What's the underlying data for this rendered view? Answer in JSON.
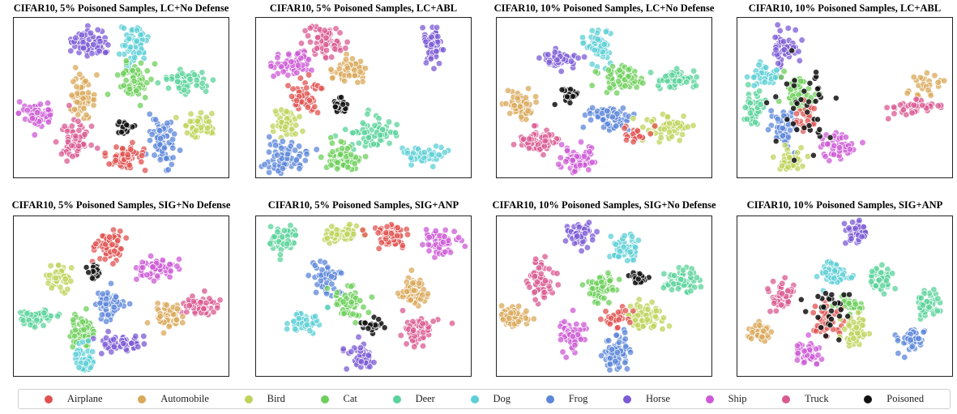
{
  "chart_data": {
    "type": "scatter",
    "classes": [
      {
        "name": "Airplane",
        "color": "#e0524f"
      },
      {
        "name": "Automobile",
        "color": "#d9a85a"
      },
      {
        "name": "Bird",
        "color": "#bdd35a"
      },
      {
        "name": "Cat",
        "color": "#6ccf5a"
      },
      {
        "name": "Deer",
        "color": "#59d39a"
      },
      {
        "name": "Dog",
        "color": "#5ccfd6"
      },
      {
        "name": "Frog",
        "color": "#5b86d9"
      },
      {
        "name": "Horse",
        "color": "#7b5ad6"
      },
      {
        "name": "Ship",
        "color": "#cc5ad6"
      },
      {
        "name": "Truck",
        "color": "#d95a91"
      },
      {
        "name": "Poisoned",
        "color": "#111111"
      }
    ],
    "panels": [
      {
        "title": "CIFAR10, 5% Poisoned Samples, LC+No Defense",
        "clusters": [
          {
            "c": "Horse",
            "x": 0.36,
            "y": 0.16,
            "n": 70,
            "rx": 0.09,
            "ry": 0.08
          },
          {
            "c": "Dog",
            "x": 0.56,
            "y": 0.16,
            "n": 60,
            "rx": 0.06,
            "ry": 0.13
          },
          {
            "c": "Cat",
            "x": 0.56,
            "y": 0.41,
            "n": 70,
            "rx": 0.07,
            "ry": 0.12
          },
          {
            "c": "Deer",
            "x": 0.8,
            "y": 0.4,
            "n": 60,
            "rx": 0.09,
            "ry": 0.07
          },
          {
            "c": "Automobile",
            "x": 0.32,
            "y": 0.5,
            "n": 60,
            "rx": 0.06,
            "ry": 0.11
          },
          {
            "c": "Ship",
            "x": 0.12,
            "y": 0.6,
            "n": 60,
            "rx": 0.09,
            "ry": 0.08
          },
          {
            "c": "Bird",
            "x": 0.86,
            "y": 0.66,
            "n": 55,
            "rx": 0.08,
            "ry": 0.08
          },
          {
            "c": "Frog",
            "x": 0.7,
            "y": 0.78,
            "n": 70,
            "rx": 0.06,
            "ry": 0.14
          },
          {
            "c": "Truck",
            "x": 0.28,
            "y": 0.77,
            "n": 65,
            "rx": 0.07,
            "ry": 0.11
          },
          {
            "c": "Airplane",
            "x": 0.52,
            "y": 0.86,
            "n": 60,
            "rx": 0.09,
            "ry": 0.09
          },
          {
            "c": "Poisoned",
            "x": 0.52,
            "y": 0.69,
            "n": 25,
            "rx": 0.04,
            "ry": 0.05
          }
        ]
      },
      {
        "title": "CIFAR10, 5% Poisoned Samples, LC+ABL",
        "clusters": [
          {
            "c": "Truck",
            "x": 0.33,
            "y": 0.15,
            "n": 65,
            "rx": 0.08,
            "ry": 0.11
          },
          {
            "c": "Horse",
            "x": 0.81,
            "y": 0.18,
            "n": 50,
            "rx": 0.05,
            "ry": 0.12
          },
          {
            "c": "Ship",
            "x": 0.16,
            "y": 0.29,
            "n": 55,
            "rx": 0.09,
            "ry": 0.08
          },
          {
            "c": "Automobile",
            "x": 0.44,
            "y": 0.32,
            "n": 55,
            "rx": 0.08,
            "ry": 0.08
          },
          {
            "c": "Airplane",
            "x": 0.23,
            "y": 0.49,
            "n": 55,
            "rx": 0.07,
            "ry": 0.1
          },
          {
            "c": "Bird",
            "x": 0.14,
            "y": 0.66,
            "n": 45,
            "rx": 0.06,
            "ry": 0.08
          },
          {
            "c": "Deer",
            "x": 0.55,
            "y": 0.72,
            "n": 70,
            "rx": 0.12,
            "ry": 0.09
          },
          {
            "c": "Frog",
            "x": 0.14,
            "y": 0.87,
            "n": 70,
            "rx": 0.11,
            "ry": 0.09
          },
          {
            "c": "Cat",
            "x": 0.4,
            "y": 0.88,
            "n": 60,
            "rx": 0.08,
            "ry": 0.09
          },
          {
            "c": "Dog",
            "x": 0.77,
            "y": 0.85,
            "n": 45,
            "rx": 0.09,
            "ry": 0.06
          },
          {
            "c": "Poisoned",
            "x": 0.39,
            "y": 0.56,
            "n": 25,
            "rx": 0.04,
            "ry": 0.05
          }
        ]
      },
      {
        "title": "CIFAR10, 10% Poisoned Samples, LC+No Defense",
        "clusters": [
          {
            "c": "Dog",
            "x": 0.48,
            "y": 0.16,
            "n": 55,
            "rx": 0.06,
            "ry": 0.11
          },
          {
            "c": "Horse",
            "x": 0.29,
            "y": 0.26,
            "n": 55,
            "rx": 0.08,
            "ry": 0.06
          },
          {
            "c": "Cat",
            "x": 0.58,
            "y": 0.38,
            "n": 60,
            "rx": 0.09,
            "ry": 0.07
          },
          {
            "c": "Deer",
            "x": 0.83,
            "y": 0.39,
            "n": 60,
            "rx": 0.09,
            "ry": 0.06
          },
          {
            "c": "Automobile",
            "x": 0.1,
            "y": 0.54,
            "n": 55,
            "rx": 0.06,
            "ry": 0.09
          },
          {
            "c": "Frog",
            "x": 0.52,
            "y": 0.62,
            "n": 65,
            "rx": 0.09,
            "ry": 0.08
          },
          {
            "c": "Bird",
            "x": 0.8,
            "y": 0.69,
            "n": 55,
            "rx": 0.1,
            "ry": 0.08
          },
          {
            "c": "Truck",
            "x": 0.2,
            "y": 0.77,
            "n": 60,
            "rx": 0.09,
            "ry": 0.08
          },
          {
            "c": "Ship",
            "x": 0.38,
            "y": 0.89,
            "n": 60,
            "rx": 0.09,
            "ry": 0.09
          },
          {
            "c": "Airplane",
            "x": 0.65,
            "y": 0.73,
            "n": 25,
            "rx": 0.06,
            "ry": 0.05
          },
          {
            "c": "Poisoned",
            "x": 0.34,
            "y": 0.49,
            "n": 25,
            "rx": 0.04,
            "ry": 0.05
          }
        ]
      },
      {
        "title": "CIFAR10, 10% Poisoned Samples, LC+ABL",
        "clusters": [
          {
            "c": "Horse",
            "x": 0.22,
            "y": 0.2,
            "n": 50,
            "rx": 0.06,
            "ry": 0.14
          },
          {
            "c": "Dog",
            "x": 0.13,
            "y": 0.36,
            "n": 40,
            "rx": 0.07,
            "ry": 0.06
          },
          {
            "c": "Cat",
            "x": 0.28,
            "y": 0.48,
            "n": 55,
            "rx": 0.08,
            "ry": 0.12
          },
          {
            "c": "Deer",
            "x": 0.08,
            "y": 0.57,
            "n": 40,
            "rx": 0.05,
            "ry": 0.1
          },
          {
            "c": "Frog",
            "x": 0.22,
            "y": 0.68,
            "n": 55,
            "rx": 0.06,
            "ry": 0.12
          },
          {
            "c": "Automobile",
            "x": 0.86,
            "y": 0.42,
            "n": 25,
            "rx": 0.08,
            "ry": 0.08
          },
          {
            "c": "Truck",
            "x": 0.82,
            "y": 0.56,
            "n": 40,
            "rx": 0.12,
            "ry": 0.04
          },
          {
            "c": "Ship",
            "x": 0.47,
            "y": 0.8,
            "n": 50,
            "rx": 0.08,
            "ry": 0.1
          },
          {
            "c": "Bird",
            "x": 0.23,
            "y": 0.9,
            "n": 40,
            "rx": 0.06,
            "ry": 0.07
          },
          {
            "c": "Airplane",
            "x": 0.32,
            "y": 0.63,
            "n": 25,
            "rx": 0.06,
            "ry": 0.1
          },
          {
            "c": "Poisoned",
            "x": 0.32,
            "y": 0.55,
            "n": 40,
            "rx": 0.16,
            "ry": 0.32
          }
        ]
      },
      {
        "title": "CIFAR10, 5% Poisoned Samples, SIG+No Defense",
        "clusters": [
          {
            "c": "Airplane",
            "x": 0.44,
            "y": 0.18,
            "n": 60,
            "rx": 0.07,
            "ry": 0.1
          },
          {
            "c": "Ship",
            "x": 0.66,
            "y": 0.33,
            "n": 55,
            "rx": 0.09,
            "ry": 0.07
          },
          {
            "c": "Bird",
            "x": 0.22,
            "y": 0.39,
            "n": 45,
            "rx": 0.06,
            "ry": 0.08
          },
          {
            "c": "Frog",
            "x": 0.45,
            "y": 0.56,
            "n": 55,
            "rx": 0.07,
            "ry": 0.09
          },
          {
            "c": "Truck",
            "x": 0.86,
            "y": 0.56,
            "n": 55,
            "rx": 0.08,
            "ry": 0.06
          },
          {
            "c": "Automobile",
            "x": 0.71,
            "y": 0.63,
            "n": 50,
            "rx": 0.06,
            "ry": 0.08
          },
          {
            "c": "Deer",
            "x": 0.11,
            "y": 0.63,
            "n": 55,
            "rx": 0.08,
            "ry": 0.06
          },
          {
            "c": "Cat",
            "x": 0.32,
            "y": 0.72,
            "n": 55,
            "rx": 0.06,
            "ry": 0.09
          },
          {
            "c": "Horse",
            "x": 0.5,
            "y": 0.79,
            "n": 55,
            "rx": 0.09,
            "ry": 0.06
          },
          {
            "c": "Dog",
            "x": 0.34,
            "y": 0.9,
            "n": 45,
            "rx": 0.05,
            "ry": 0.09
          },
          {
            "c": "Poisoned",
            "x": 0.38,
            "y": 0.34,
            "n": 20,
            "rx": 0.04,
            "ry": 0.04
          }
        ]
      },
      {
        "title": "CIFAR10, 5% Poisoned Samples, SIG+ANP",
        "clusters": [
          {
            "c": "Deer",
            "x": 0.13,
            "y": 0.14,
            "n": 55,
            "rx": 0.07,
            "ry": 0.08
          },
          {
            "c": "Bird",
            "x": 0.4,
            "y": 0.11,
            "n": 55,
            "rx": 0.09,
            "ry": 0.06
          },
          {
            "c": "Airplane",
            "x": 0.62,
            "y": 0.13,
            "n": 55,
            "rx": 0.09,
            "ry": 0.07
          },
          {
            "c": "Ship",
            "x": 0.85,
            "y": 0.17,
            "n": 55,
            "rx": 0.08,
            "ry": 0.07
          },
          {
            "c": "Frog",
            "x": 0.33,
            "y": 0.38,
            "n": 55,
            "rx": 0.06,
            "ry": 0.1
          },
          {
            "c": "Cat",
            "x": 0.43,
            "y": 0.54,
            "n": 60,
            "rx": 0.08,
            "ry": 0.09
          },
          {
            "c": "Automobile",
            "x": 0.73,
            "y": 0.46,
            "n": 55,
            "rx": 0.06,
            "ry": 0.1
          },
          {
            "c": "Dog",
            "x": 0.22,
            "y": 0.66,
            "n": 50,
            "rx": 0.09,
            "ry": 0.06
          },
          {
            "c": "Truck",
            "x": 0.76,
            "y": 0.71,
            "n": 55,
            "rx": 0.07,
            "ry": 0.09
          },
          {
            "c": "Horse",
            "x": 0.49,
            "y": 0.88,
            "n": 55,
            "rx": 0.06,
            "ry": 0.09
          },
          {
            "c": "Poisoned",
            "x": 0.54,
            "y": 0.68,
            "n": 25,
            "rx": 0.06,
            "ry": 0.04
          }
        ]
      },
      {
        "title": "CIFAR10, 10% Poisoned Samples, SIG+No Defense",
        "clusters": [
          {
            "c": "Horse",
            "x": 0.39,
            "y": 0.11,
            "n": 55,
            "rx": 0.06,
            "ry": 0.08
          },
          {
            "c": "Dog",
            "x": 0.59,
            "y": 0.2,
            "n": 50,
            "rx": 0.06,
            "ry": 0.08
          },
          {
            "c": "Truck",
            "x": 0.21,
            "y": 0.4,
            "n": 60,
            "rx": 0.06,
            "ry": 0.12
          },
          {
            "c": "Deer",
            "x": 0.86,
            "y": 0.4,
            "n": 55,
            "rx": 0.08,
            "ry": 0.07
          },
          {
            "c": "Cat",
            "x": 0.49,
            "y": 0.46,
            "n": 55,
            "rx": 0.07,
            "ry": 0.09
          },
          {
            "c": "Automobile",
            "x": 0.08,
            "y": 0.63,
            "n": 55,
            "rx": 0.08,
            "ry": 0.06
          },
          {
            "c": "Bird",
            "x": 0.69,
            "y": 0.63,
            "n": 55,
            "rx": 0.09,
            "ry": 0.08
          },
          {
            "c": "Airplane",
            "x": 0.56,
            "y": 0.64,
            "n": 30,
            "rx": 0.07,
            "ry": 0.06
          },
          {
            "c": "Ship",
            "x": 0.35,
            "y": 0.75,
            "n": 55,
            "rx": 0.06,
            "ry": 0.11
          },
          {
            "c": "Frog",
            "x": 0.56,
            "y": 0.85,
            "n": 65,
            "rx": 0.06,
            "ry": 0.13
          },
          {
            "c": "Poisoned",
            "x": 0.66,
            "y": 0.39,
            "n": 20,
            "rx": 0.04,
            "ry": 0.04
          }
        ]
      },
      {
        "title": "CIFAR10, 10% Poisoned Samples, SIG+ANP",
        "clusters": [
          {
            "c": "Horse",
            "x": 0.55,
            "y": 0.1,
            "n": 45,
            "rx": 0.05,
            "ry": 0.09
          },
          {
            "c": "Dog",
            "x": 0.45,
            "y": 0.36,
            "n": 50,
            "rx": 0.08,
            "ry": 0.07
          },
          {
            "c": "Deer",
            "x": 0.66,
            "y": 0.4,
            "n": 45,
            "rx": 0.06,
            "ry": 0.08
          },
          {
            "c": "Truck",
            "x": 0.2,
            "y": 0.48,
            "n": 50,
            "rx": 0.06,
            "ry": 0.08
          },
          {
            "c": "Deer",
            "x": 0.88,
            "y": 0.55,
            "n": 45,
            "rx": 0.06,
            "ry": 0.07
          },
          {
            "c": "Cat",
            "x": 0.52,
            "y": 0.55,
            "n": 30,
            "rx": 0.07,
            "ry": 0.06
          },
          {
            "c": "Airplane",
            "x": 0.42,
            "y": 0.66,
            "n": 40,
            "rx": 0.07,
            "ry": 0.08
          },
          {
            "c": "Bird",
            "x": 0.55,
            "y": 0.72,
            "n": 50,
            "rx": 0.06,
            "ry": 0.09
          },
          {
            "c": "Automobile",
            "x": 0.11,
            "y": 0.72,
            "n": 45,
            "rx": 0.06,
            "ry": 0.07
          },
          {
            "c": "Frog",
            "x": 0.81,
            "y": 0.78,
            "n": 45,
            "rx": 0.06,
            "ry": 0.07
          },
          {
            "c": "Ship",
            "x": 0.33,
            "y": 0.86,
            "n": 45,
            "rx": 0.06,
            "ry": 0.07
          },
          {
            "c": "Poisoned",
            "x": 0.45,
            "y": 0.58,
            "n": 30,
            "rx": 0.14,
            "ry": 0.14
          }
        ]
      }
    ]
  }
}
